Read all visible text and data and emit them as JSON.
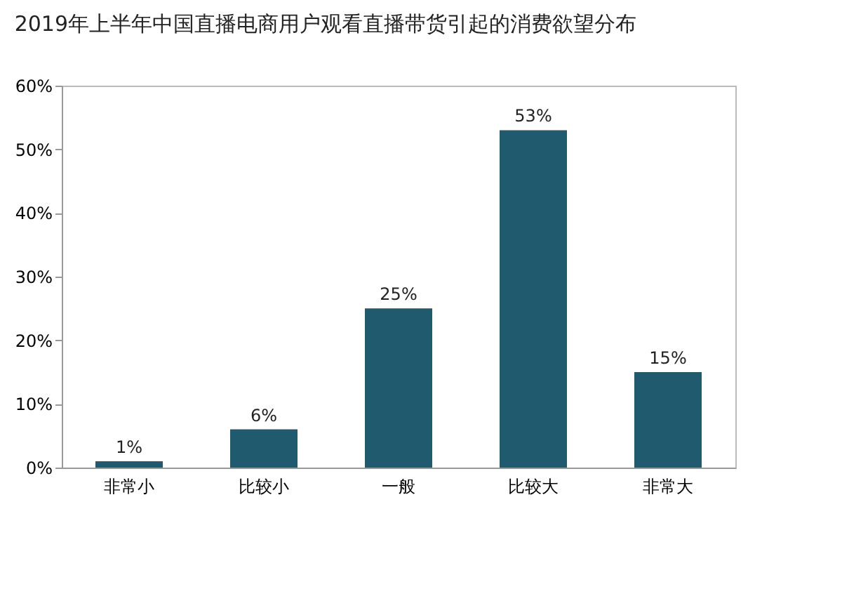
{
  "chart_data": {
    "type": "bar",
    "title": "2019年上半年中国直播电商用户观看直播带货引起的消费欲望分布",
    "categories": [
      "非常小",
      "比较小",
      "一般",
      "比较大",
      "非常大"
    ],
    "values": [
      1,
      6,
      25,
      53,
      15
    ],
    "color": "#1f5a6e",
    "value_labels": [
      "1%",
      "6%",
      "25%",
      "53%",
      "15%"
    ],
    "ylim": [
      0,
      60
    ],
    "yticks": [
      {
        "value": 0,
        "label": "0%"
      },
      {
        "value": 10,
        "label": "10%"
      },
      {
        "value": 20,
        "label": "20%"
      },
      {
        "value": 30,
        "label": "30%"
      },
      {
        "value": 40,
        "label": "40%"
      },
      {
        "value": 50,
        "label": "50%"
      },
      {
        "value": 60,
        "label": "60%"
      }
    ],
    "grid": false
  }
}
